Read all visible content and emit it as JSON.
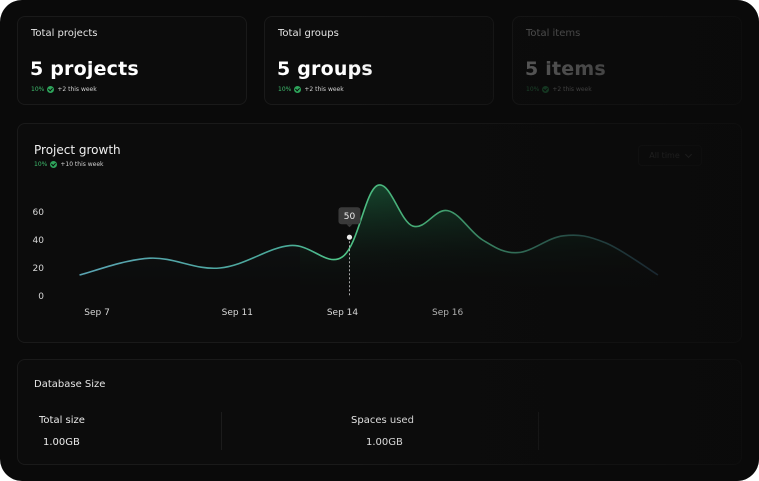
{
  "stats": [
    {
      "title": "Total projects",
      "value": "5 projects",
      "pct": "10%",
      "note": "+2 this week"
    },
    {
      "title": "Total groups",
      "value": "5 groups",
      "pct": "10%",
      "note": "+2 this week"
    },
    {
      "title": "Total items",
      "value": "5 items",
      "pct": "10%",
      "note": "+2 this week"
    }
  ],
  "growth": {
    "title": "Project growth",
    "pct": "10%",
    "note": "+10 this week",
    "filter_label": "All time",
    "tooltip": "50"
  },
  "chart_data": {
    "type": "area",
    "title": "Project growth",
    "x_ticks": [
      "Sep 7",
      "Sep 11",
      "Sep 14",
      "Sep 16"
    ],
    "y_ticks": [
      "0",
      "20",
      "40",
      "60"
    ],
    "ylim": [
      0,
      80
    ],
    "x": [
      6.5,
      8.5,
      10.5,
      12.5,
      14,
      15,
      16,
      17,
      18,
      19,
      20.3,
      21.5,
      23
    ],
    "values": [
      15,
      27,
      20,
      36,
      28,
      79,
      50,
      61,
      40,
      31,
      43,
      38,
      15
    ],
    "highlight": {
      "x": 14.2,
      "y": 42,
      "label": "50"
    },
    "grid": false,
    "colors": {
      "line_low": "#5aa4b3",
      "line_high": "#4fc487",
      "accent": "#1f7a4b"
    }
  },
  "database": {
    "title": "Database Size",
    "total_label": "Total size",
    "total_value": "1.00GB",
    "spaces_label": "Spaces used",
    "spaces_value": "1.00GB"
  }
}
